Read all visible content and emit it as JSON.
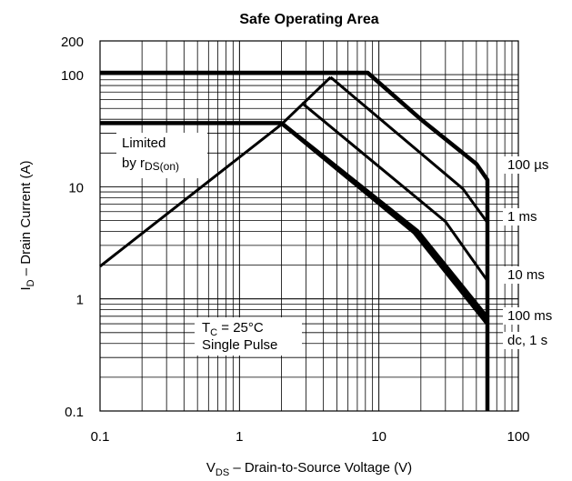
{
  "chart_data": {
    "type": "line",
    "title": "Safe Operating Area",
    "xscale": "log",
    "yscale": "log",
    "xlim": [
      0.1,
      100
    ],
    "ylim": [
      0.1,
      200
    ],
    "x_ticks": [
      {
        "value": 0.1,
        "label": "0.1"
      },
      {
        "value": 1,
        "label": "1"
      },
      {
        "value": 10,
        "label": "10"
      },
      {
        "value": 100,
        "label": "100"
      }
    ],
    "y_ticks": [
      {
        "value": 0.1,
        "label": "0.1"
      },
      {
        "value": 1,
        "label": "1"
      },
      {
        "value": 10,
        "label": "10"
      },
      {
        "value": 100,
        "label": "100"
      },
      {
        "value": 200,
        "label": "200"
      }
    ],
    "xlabel": {
      "main": "V",
      "sub": "DS",
      "rest": " – Drain-to-Source Voltage (V)"
    },
    "ylabel": {
      "main": "I",
      "sub": "D",
      "rest": " – Drain Current (A)"
    },
    "grid": true,
    "limit_line": {
      "annotation": {
        "line1": "Limited",
        "line2_main": "by r",
        "line2_sub": "DS(on)"
      },
      "points": [
        [
          0.1,
          1.95
        ],
        [
          2.0,
          36
        ],
        [
          4.5,
          95
        ]
      ]
    },
    "series": [
      {
        "name": "100 µs",
        "points": [
          [
            0.1,
            104
          ],
          [
            8.3,
            104
          ],
          [
            20,
            40
          ],
          [
            50,
            16
          ],
          [
            60,
            11.5
          ],
          [
            60,
            0.08
          ]
        ]
      },
      {
        "name": "1 ms",
        "points": [
          [
            4.5,
            95
          ],
          [
            40,
            9.6
          ],
          [
            60,
            4.8
          ]
        ]
      },
      {
        "name": "10 ms",
        "points": [
          [
            2.8,
            56
          ],
          [
            30,
            4.9
          ],
          [
            60,
            1.45
          ]
        ]
      },
      {
        "name": "100 ms",
        "points": [
          [
            0.1,
            37
          ],
          [
            2.0,
            37
          ],
          [
            19,
            4.0
          ],
          [
            60,
            0.68
          ]
        ]
      },
      {
        "name": "dc, 1 s",
        "points": [
          [
            2.0,
            37
          ],
          [
            18,
            3.9
          ],
          [
            60,
            0.6
          ]
        ]
      }
    ],
    "annotation": {
      "line1_main": "T",
      "line1_sub": "C",
      "line1_rest": " = 25°C",
      "line2": "Single Pulse"
    }
  }
}
